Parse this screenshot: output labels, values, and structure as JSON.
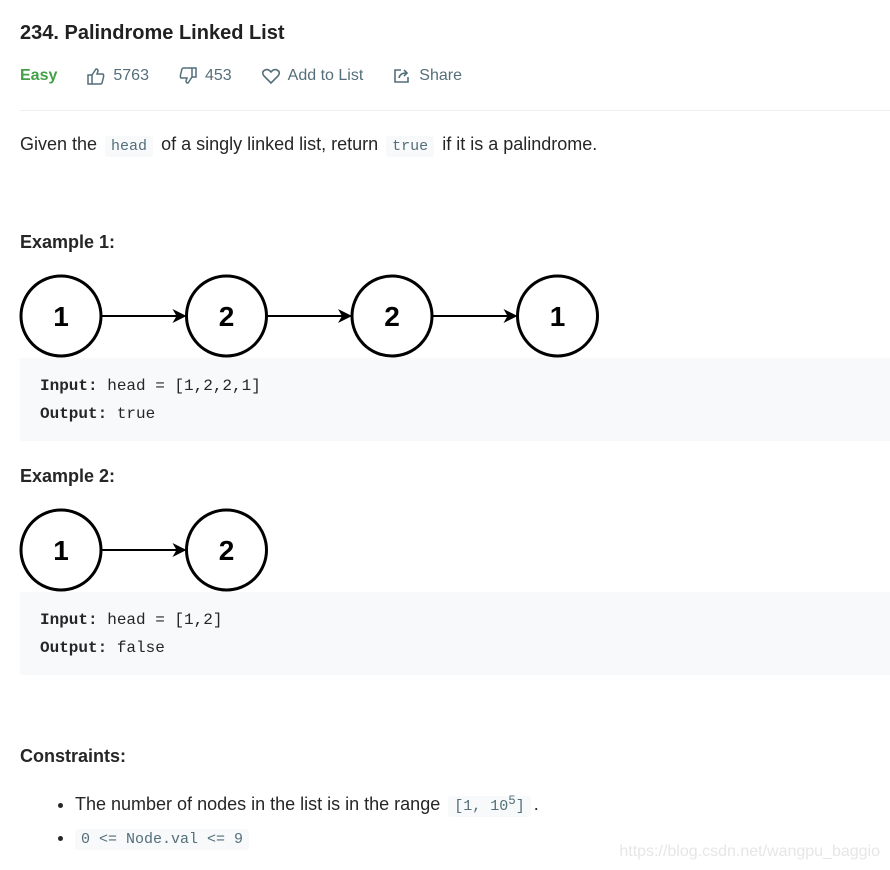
{
  "problem": {
    "title": "234. Palindrome Linked List",
    "difficulty": "Easy",
    "likes": "5763",
    "dislikes": "453",
    "add_to_list": "Add to List",
    "share": "Share"
  },
  "description": {
    "p1": "Given the ",
    "code1": "head",
    "p2": " of a singly linked list, return ",
    "code2": "true",
    "p3": " if it is a palindrome."
  },
  "examples": [
    {
      "title": "Example 1:",
      "nodes": [
        1,
        2,
        2,
        1
      ],
      "input_label": "Input:",
      "input": " head = [1,2,2,1]",
      "output_label": "Output:",
      "output": " true"
    },
    {
      "title": "Example 2:",
      "nodes": [
        1,
        2
      ],
      "input_label": "Input:",
      "input": " head = [1,2]",
      "output_label": "Output:",
      "output": " false"
    }
  ],
  "constraints": {
    "title": "Constraints:",
    "c1_text": "The number of nodes in the list is in the range ",
    "c1_code": "[1, 10",
    "c1_sup": "5",
    "c1_code_end": "]",
    "c1_end": ".",
    "c2_code": "0 <= Node.val <= 9"
  },
  "watermark": "https://blog.csdn.net/wangpu_baggio",
  "colors": {
    "easy": "#43a047",
    "meta": "#546e7a",
    "code_bg": "#f7f9fa"
  }
}
